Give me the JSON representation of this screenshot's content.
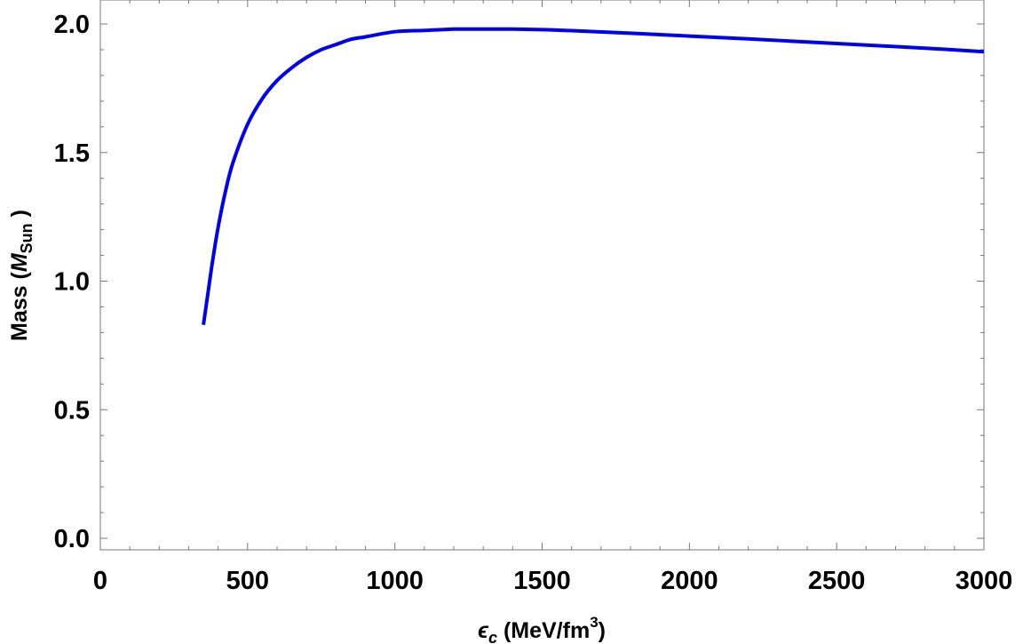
{
  "chart_data": {
    "type": "line",
    "xlabel": {
      "symbol": "ϵ",
      "subscript": "c",
      "text": " (MeV/fm",
      "superscript": "3",
      "close": ")"
    },
    "ylabel": {
      "text": "Mass (",
      "symbol": "M",
      "subscript": "Sun",
      "close": " )"
    },
    "xlim": [
      0,
      3000
    ],
    "ylim": [
      0,
      2.0
    ],
    "x_ticks": [
      0,
      500,
      1000,
      1500,
      2000,
      2500,
      3000
    ],
    "x_tick_labels": [
      "0",
      "500",
      "1000",
      "1500",
      "2000",
      "2500",
      "3000"
    ],
    "y_ticks": [
      0.0,
      0.5,
      1.0,
      1.5,
      2.0
    ],
    "y_tick_labels": [
      "0.0",
      "0.5",
      "1.0",
      "1.5",
      "2.0"
    ],
    "grid": false,
    "series": [
      {
        "color": "#0000ee",
        "x": [
          350,
          365,
          380,
          400,
          425,
          450,
          500,
          550,
          600,
          650,
          700,
          750,
          800,
          850,
          900,
          1000,
          1100,
          1200,
          1300,
          1400,
          1500,
          1600,
          1800,
          2000,
          2200,
          2400,
          2600,
          2800,
          3000
        ],
        "y": [
          0.83,
          0.95,
          1.07,
          1.21,
          1.35,
          1.46,
          1.61,
          1.71,
          1.78,
          1.83,
          1.87,
          1.9,
          1.92,
          1.94,
          1.95,
          1.97,
          1.975,
          1.98,
          1.98,
          1.98,
          1.978,
          1.974,
          1.964,
          1.953,
          1.942,
          1.93,
          1.918,
          1.906,
          1.892
        ]
      }
    ]
  }
}
